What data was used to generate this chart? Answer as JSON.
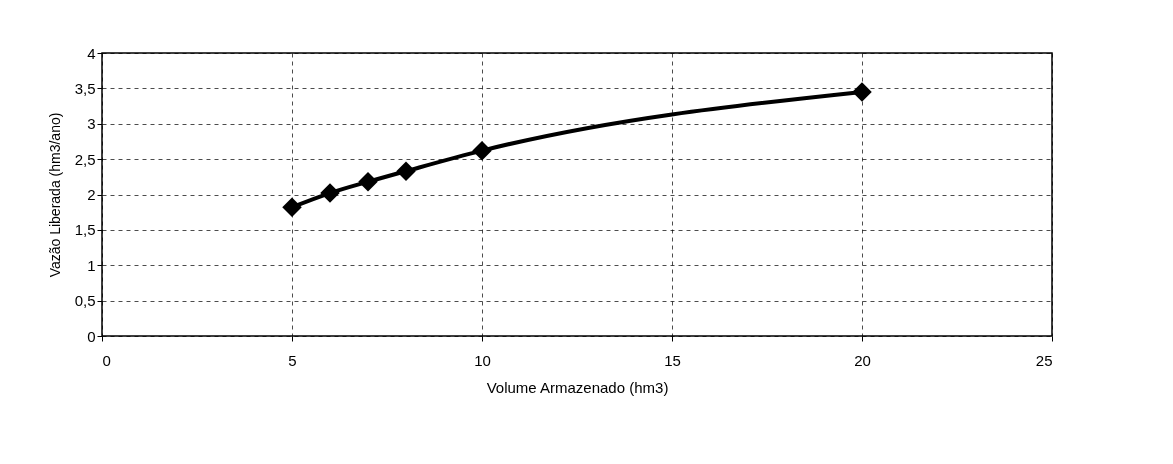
{
  "chart_data": {
    "type": "line",
    "xlabel": "Volume Armazenado (hm3)",
    "ylabel": "Vazão Liberada (hm3/ano)",
    "x": [
      5,
      6,
      7,
      8,
      10,
      20
    ],
    "series": [
      {
        "color": "#000000",
        "values": [
          1.82,
          2.02,
          2.18,
          2.33,
          2.62,
          3.45
        ]
      }
    ],
    "xlim": [
      0,
      25
    ],
    "xticks": [
      0,
      5,
      10,
      15,
      20,
      25
    ],
    "ylim": [
      0,
      4
    ],
    "yticks": [
      0,
      {
        "value": 0.5,
        "label": "0,5"
      },
      1,
      {
        "value": 1.5,
        "label": "1,5"
      },
      2,
      {
        "value": 2.5,
        "label": "2,5"
      },
      3,
      {
        "value": 3.5,
        "label": "3,5"
      },
      4
    ],
    "grid": true,
    "marker": "diamond",
    "line_style": "solid"
  }
}
